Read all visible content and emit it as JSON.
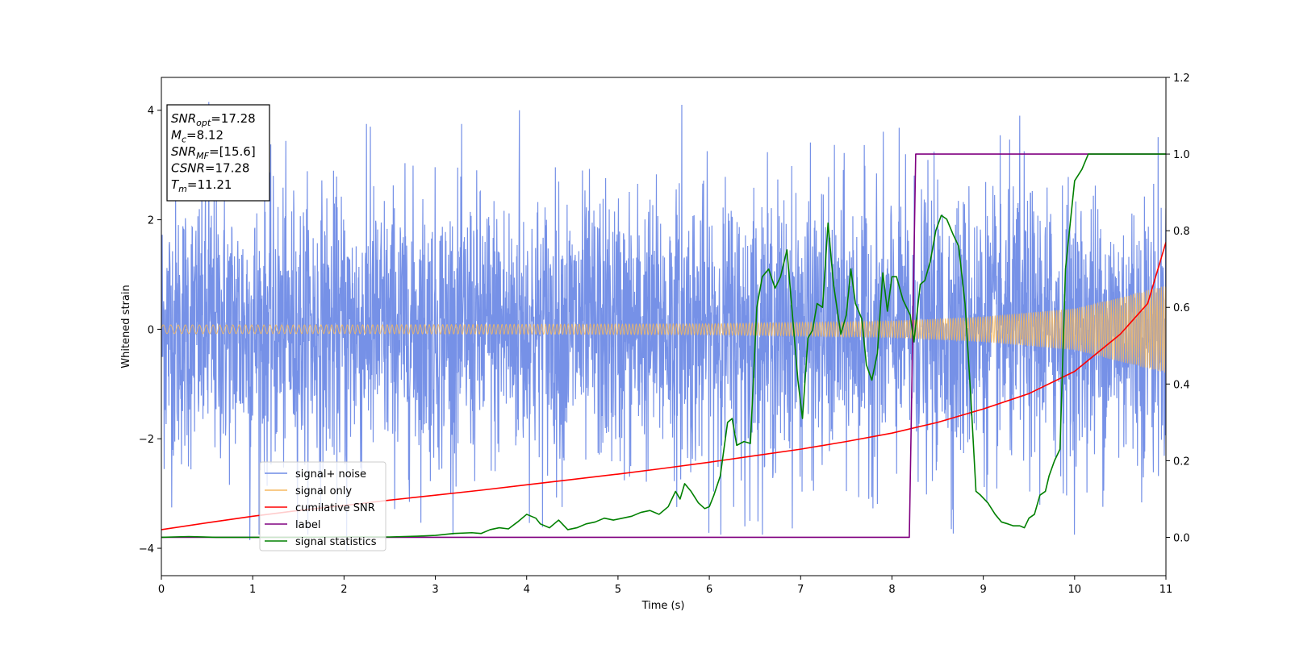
{
  "chart_data": {
    "type": "line",
    "xlabel": "Time (s)",
    "ylabel": "Whitened strain",
    "xlim": [
      0,
      11
    ],
    "ylim": [
      -4.5,
      4.6
    ],
    "ylim_right": [
      -0.1,
      1.2
    ],
    "x_ticks": [
      "0",
      "1",
      "2",
      "3",
      "4",
      "5",
      "6",
      "7",
      "8",
      "9",
      "10",
      "11"
    ],
    "y_ticks_left": [
      "4",
      "2",
      "0",
      "−2",
      "−4"
    ],
    "y_ticks_left_values": [
      4,
      2,
      0,
      -2,
      -4
    ],
    "y_ticks_right": [
      "1.2",
      "1.0",
      "0.8",
      "0.6",
      "0.4",
      "0.2",
      "0.0"
    ],
    "y_ticks_right_values": [
      1.2,
      1.0,
      0.8,
      0.6,
      0.4,
      0.2,
      0.0
    ],
    "legend_position": "lower-left",
    "legend": [
      "signal+ noise",
      "signal only",
      "cumilative SNR",
      "label",
      "signal statistics"
    ],
    "info_box": {
      "lines": [
        {
          "base": "SNR",
          "sub": "opt",
          "value": "=17.28"
        },
        {
          "base": "M",
          "sub": "c",
          "value": "=8.12"
        },
        {
          "base": "SNR",
          "sub": "MF",
          "value": "=[15.6]"
        },
        {
          "base": "CSNR",
          "sub": "",
          "value": "=17.28"
        },
        {
          "base": "T",
          "sub": "m",
          "value": "=11.21"
        }
      ]
    },
    "colors": {
      "noise": "#6f8be6",
      "signal": "#f5b860",
      "csnr": "#ff0000",
      "label": "#800080",
      "stats": "#008000"
    },
    "series": [
      {
        "name": "signal+ noise",
        "axis": "left",
        "kind": "noise_band",
        "envelope_typical": 2.0,
        "peak_extremes": [
          {
            "x": 0.52,
            "y": 4.15
          },
          {
            "x": 3.92,
            "y": 4.0
          },
          {
            "x": 5.7,
            "y": 4.1
          },
          {
            "x": 2.29,
            "y": 3.7
          },
          {
            "x": 9.4,
            "y": 3.9
          },
          {
            "x": 2.03,
            "y": -4.05
          },
          {
            "x": 0.97,
            "y": -3.85
          },
          {
            "x": 6.39,
            "y": -3.6
          },
          {
            "x": 8.65,
            "y": -3.65
          }
        ]
      },
      {
        "name": "signal only",
        "axis": "left",
        "kind": "chirp",
        "amplitude_envelope": [
          [
            0,
            0.08
          ],
          [
            2,
            0.08
          ],
          [
            4,
            0.09
          ],
          [
            6,
            0.1
          ],
          [
            8,
            0.15
          ],
          [
            9,
            0.23
          ],
          [
            10,
            0.38
          ],
          [
            11,
            0.8
          ]
        ]
      },
      {
        "name": "cumilative SNR",
        "axis": "right",
        "x": [
          0,
          0.5,
          1,
          1.5,
          2,
          2.5,
          3,
          3.5,
          4,
          4.5,
          5,
          5.5,
          6,
          6.5,
          7,
          7.5,
          8,
          8.5,
          9,
          9.5,
          10,
          10.5,
          10.8,
          11
        ],
        "y": [
          0.02,
          0.038,
          0.055,
          0.07,
          0.083,
          0.097,
          0.11,
          0.123,
          0.137,
          0.151,
          0.165,
          0.18,
          0.196,
          0.213,
          0.23,
          0.25,
          0.272,
          0.3,
          0.335,
          0.375,
          0.433,
          0.53,
          0.61,
          0.77
        ]
      },
      {
        "name": "label",
        "axis": "right",
        "x": [
          0,
          8.19,
          8.26,
          11
        ],
        "y": [
          0,
          0,
          1,
          1
        ]
      },
      {
        "name": "signal statistics",
        "axis": "right",
        "x": [
          0,
          0.3,
          0.6,
          1.0,
          1.5,
          2.0,
          2.5,
          2.8,
          3.0,
          3.2,
          3.4,
          3.5,
          3.6,
          3.7,
          3.8,
          3.9,
          4.0,
          4.1,
          4.15,
          4.25,
          4.35,
          4.45,
          4.55,
          4.65,
          4.75,
          4.85,
          4.95,
          5.05,
          5.15,
          5.25,
          5.35,
          5.45,
          5.55,
          5.63,
          5.68,
          5.73,
          5.8,
          5.88,
          5.95,
          6.0,
          6.05,
          6.12,
          6.2,
          6.25,
          6.3,
          6.38,
          6.45,
          6.52,
          6.58,
          6.65,
          6.72,
          6.78,
          6.85,
          6.9,
          6.97,
          7.02,
          7.08,
          7.13,
          7.18,
          7.24,
          7.3,
          7.36,
          7.44,
          7.5,
          7.55,
          7.6,
          7.67,
          7.72,
          7.78,
          7.84,
          7.9,
          7.95,
          8.0,
          8.05,
          8.12,
          8.2,
          8.24,
          8.31,
          8.36,
          8.42,
          8.48,
          8.54,
          8.6,
          8.67,
          8.73,
          8.8,
          8.86,
          8.92,
          8.97,
          9.05,
          9.13,
          9.2,
          9.27,
          9.33,
          9.4,
          9.45,
          9.5,
          9.56,
          9.62,
          9.68,
          9.72,
          9.78,
          9.84,
          9.9,
          10.0,
          10.08,
          10.15,
          10.25,
          10.4,
          10.6,
          10.8,
          11.0
        ],
        "y": [
          0.0,
          0.002,
          0.0,
          0.0,
          0.0,
          0.001,
          0.001,
          0.003,
          0.005,
          0.01,
          0.012,
          0.01,
          0.02,
          0.025,
          0.022,
          0.04,
          0.06,
          0.05,
          0.035,
          0.025,
          0.045,
          0.02,
          0.025,
          0.035,
          0.04,
          0.05,
          0.045,
          0.05,
          0.055,
          0.065,
          0.07,
          0.06,
          0.08,
          0.12,
          0.1,
          0.14,
          0.12,
          0.09,
          0.075,
          0.08,
          0.11,
          0.16,
          0.3,
          0.31,
          0.24,
          0.25,
          0.245,
          0.6,
          0.68,
          0.7,
          0.65,
          0.68,
          0.75,
          0.61,
          0.41,
          0.31,
          0.52,
          0.54,
          0.61,
          0.6,
          0.82,
          0.66,
          0.53,
          0.58,
          0.7,
          0.61,
          0.57,
          0.45,
          0.41,
          0.48,
          0.69,
          0.59,
          0.68,
          0.68,
          0.62,
          0.58,
          0.51,
          0.66,
          0.67,
          0.72,
          0.8,
          0.84,
          0.83,
          0.79,
          0.76,
          0.61,
          0.38,
          0.12,
          0.11,
          0.09,
          0.06,
          0.04,
          0.035,
          0.03,
          0.03,
          0.025,
          0.05,
          0.06,
          0.11,
          0.12,
          0.16,
          0.2,
          0.23,
          0.7,
          0.93,
          0.96,
          1.0,
          1.0,
          1.0,
          1.0,
          1.0,
          1.0
        ]
      }
    ]
  }
}
